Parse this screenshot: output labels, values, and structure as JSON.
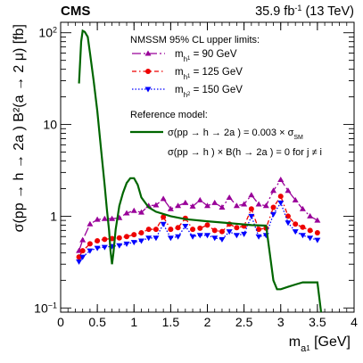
{
  "chart_data": {
    "type": "line",
    "cms_label": "CMS",
    "lumi": {
      "value": "35.9 fb",
      "sup": "-1",
      "energy": " (13 TeV)"
    },
    "xlabel": {
      "main": "m",
      "sub": "a",
      "subsub": "1",
      "unit": " [GeV]"
    },
    "ylabel": "σ(pp → h  → 2a ) B²(a  → 2 μ) [fb]",
    "ylabel_subs": [
      "i",
      "1",
      "1"
    ],
    "xlim": [
      0,
      4
    ],
    "ylim": [
      0.09,
      130
    ],
    "yscale": "log",
    "x_ticks": [
      "0",
      "0.5",
      "1",
      "1.5",
      "2",
      "2.5",
      "3",
      "3.5",
      "4"
    ],
    "x_tick_values": [
      0,
      0.5,
      1,
      1.5,
      2,
      2.5,
      3,
      3.5,
      4
    ],
    "y_ticks": [
      {
        "value": 0.1,
        "base": "10",
        "exp": "−1"
      },
      {
        "value": 1,
        "base": "1",
        "exp": ""
      },
      {
        "value": 10,
        "base": "10",
        "exp": ""
      },
      {
        "value": 100,
        "base": "10",
        "exp": "2"
      }
    ],
    "legend": {
      "title": "NMSSM 95% CL upper limits:",
      "reference_title": "Reference model:",
      "reference_line1": "σ(pp → h  → 2a ) = 0.003 × σ",
      "reference_line1_sub": "SM",
      "reference_line2": "σ(pp → h ) × B(h  → 2a ) = 0 for j ≠ i"
    },
    "series": [
      {
        "label": "m   =   90 GeV",
        "label_sub": "h",
        "label_subsub": "1",
        "color": "#990099",
        "marker": "triangle-up",
        "dash": "10,3,2,3",
        "x": [
          0.25,
          0.3,
          0.4,
          0.5,
          0.6,
          0.7,
          0.8,
          0.9,
          1.0,
          1.1,
          1.2,
          1.3,
          1.4,
          1.5,
          1.6,
          1.7,
          1.8,
          1.9,
          2.0,
          2.1,
          2.2,
          2.3,
          2.4,
          2.5,
          2.6,
          2.7,
          2.8,
          2.9,
          3.0,
          3.1,
          3.2,
          3.3,
          3.4,
          3.5
        ],
        "values": [
          0.42,
          0.55,
          0.82,
          0.92,
          0.94,
          0.94,
          0.96,
          1.08,
          1.15,
          1.1,
          1.3,
          1.32,
          1.55,
          1.2,
          1.3,
          1.4,
          1.28,
          1.5,
          1.3,
          1.4,
          1.25,
          1.6,
          1.3,
          1.35,
          1.7,
          1.35,
          1.3,
          1.9,
          2.5,
          1.9,
          1.5,
          1.2,
          1.0,
          0.9
        ]
      },
      {
        "label": "m   = 125 GeV",
        "label_sub": "h",
        "label_subsub": "1",
        "color": "#ee0000",
        "marker": "circle",
        "dash": "5,3,1.5,3",
        "x": [
          0.25,
          0.3,
          0.4,
          0.5,
          0.6,
          0.7,
          0.8,
          0.9,
          1.0,
          1.1,
          1.2,
          1.3,
          1.4,
          1.5,
          1.6,
          1.7,
          1.8,
          1.9,
          2.0,
          2.1,
          2.2,
          2.3,
          2.4,
          2.5,
          2.6,
          2.7,
          2.8,
          2.9,
          3.0,
          3.1,
          3.2,
          3.3,
          3.4,
          3.5
        ],
        "values": [
          0.36,
          0.42,
          0.5,
          0.54,
          0.56,
          0.57,
          0.58,
          0.6,
          0.63,
          0.66,
          0.72,
          0.72,
          0.98,
          0.72,
          0.75,
          0.95,
          0.72,
          0.74,
          0.8,
          0.7,
          0.68,
          0.82,
          0.75,
          0.78,
          1.2,
          0.72,
          0.74,
          1.25,
          1.65,
          1.0,
          0.82,
          0.76,
          0.7,
          0.66
        ]
      },
      {
        "label": "m   = 150 GeV",
        "label_sub": "h",
        "label_subsub": "2",
        "color": "#0000ff",
        "marker": "triangle-down",
        "dash": "1.5,2",
        "x": [
          0.25,
          0.3,
          0.4,
          0.5,
          0.6,
          0.7,
          0.8,
          0.9,
          1.0,
          1.1,
          1.2,
          1.3,
          1.4,
          1.5,
          1.6,
          1.7,
          1.8,
          1.9,
          2.0,
          2.1,
          2.2,
          2.3,
          2.4,
          2.5,
          2.6,
          2.7,
          2.8,
          2.9,
          3.0,
          3.1,
          3.2,
          3.3,
          3.4,
          3.5
        ],
        "values": [
          0.32,
          0.36,
          0.42,
          0.45,
          0.46,
          0.47,
          0.48,
          0.5,
          0.52,
          0.54,
          0.58,
          0.58,
          0.82,
          0.58,
          0.6,
          0.78,
          0.6,
          0.62,
          0.62,
          0.58,
          0.56,
          0.68,
          0.62,
          0.64,
          1.0,
          0.6,
          0.62,
          1.05,
          1.4,
          0.85,
          0.68,
          0.62,
          0.58,
          0.55
        ]
      },
      {
        "label": "σ(pp → h  → 2a ) = 0.003 × σ",
        "color": "#006600",
        "marker": "none",
        "dash": "",
        "x": [
          0.25,
          0.28,
          0.3,
          0.33,
          0.37,
          0.4,
          0.45,
          0.5,
          0.55,
          0.6,
          0.63,
          0.66,
          0.68,
          0.7,
          0.72,
          0.75,
          0.8,
          0.85,
          0.9,
          0.95,
          1.0,
          1.05,
          1.1,
          1.2,
          1.3,
          1.5,
          1.7,
          2.0,
          2.3,
          2.6,
          2.8,
          2.85,
          2.9,
          2.95,
          3.0,
          3.1,
          3.2,
          3.3,
          3.4,
          3.5,
          3.55
        ],
        "values": [
          28,
          80,
          105,
          102,
          90,
          60,
          30,
          14,
          5.5,
          2.2,
          1.2,
          0.7,
          0.42,
          0.3,
          0.4,
          0.72,
          1.3,
          1.8,
          2.3,
          2.6,
          2.6,
          2.2,
          1.6,
          1.25,
          1.12,
          1.0,
          0.93,
          0.88,
          0.84,
          0.8,
          0.79,
          0.4,
          0.2,
          0.16,
          0.16,
          0.17,
          0.18,
          0.19,
          0.19,
          0.19,
          0.08
        ]
      }
    ]
  }
}
